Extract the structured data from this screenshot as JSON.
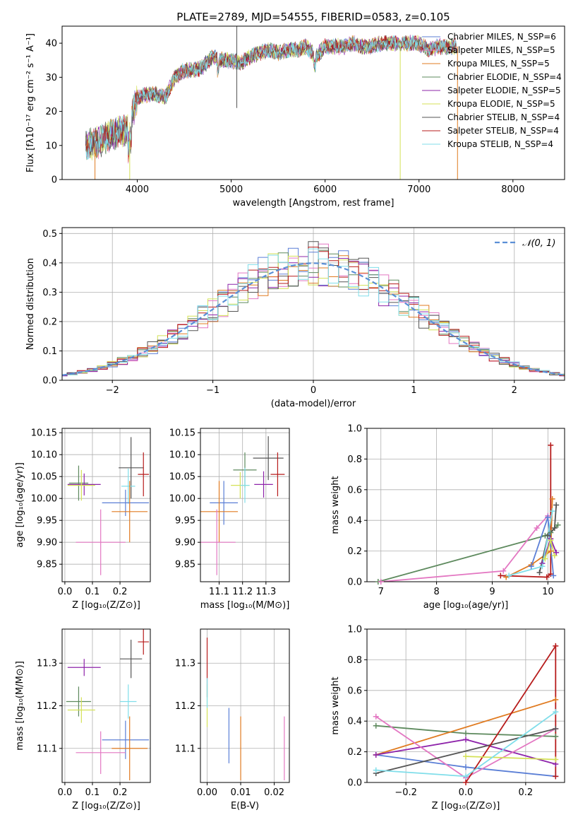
{
  "colors": {
    "chabrier_miles": "#5b7fd6",
    "salpeter_miles": "#e377c2",
    "kroupa_miles": "#e07b21",
    "chabrier_elodie": "#5e8a5e",
    "salpeter_elodie": "#8e24aa",
    "kroupa_elodie": "#d4e157",
    "chabrier_stelib": "#555555",
    "salpeter_stelib": "#b71c1c",
    "kroupa_stelib": "#80deea"
  },
  "chart_data": [
    {
      "id": "spectrum",
      "type": "line",
      "title": "PLATE=2789, MJD=54555, FIBERID=0583, z=0.105",
      "xlabel": "wavelength [Angstrom, rest frame]",
      "ylabel": "Flux [fλ10⁻¹⁷ erg cm⁻² s⁻¹ A⁻¹]",
      "xlim": [
        3200,
        8550
      ],
      "ylim": [
        0,
        45
      ],
      "xticks": [
        4000,
        5000,
        6000,
        7000,
        8000
      ],
      "yticks": [
        0,
        10,
        20,
        30,
        40
      ],
      "legend_position": "upper-right",
      "grid": false,
      "series": [
        {
          "name": "Chabrier MILES, N_SSP=6",
          "color_key": "chabrier_miles"
        },
        {
          "name": "Salpeter MILES, N_SSP=5",
          "color_key": "salpeter_miles"
        },
        {
          "name": "Kroupa MILES, N_SSP=5",
          "color_key": "kroupa_miles"
        },
        {
          "name": "Chabrier ELODIE, N_SSP=4",
          "color_key": "chabrier_elodie"
        },
        {
          "name": "Salpeter ELODIE, N_SSP=5",
          "color_key": "salpeter_elodie"
        },
        {
          "name": "Kroupa ELODIE, N_SSP=5",
          "color_key": "kroupa_elodie"
        },
        {
          "name": "Chabrier STELIB, N_SSP=4",
          "color_key": "chabrier_stelib"
        },
        {
          "name": "Salpeter STELIB, N_SSP=4",
          "color_key": "salpeter_stelib"
        },
        {
          "name": "Kroupa STELIB, N_SSP=4",
          "color_key": "kroupa_stelib"
        }
      ],
      "envelope": {
        "x": [
          3450,
          3600,
          3700,
          3800,
          3900,
          4000,
          4100,
          4200,
          4300,
          4400,
          4500,
          4600,
          4700,
          4800,
          4900,
          5000,
          5100,
          5200,
          5300,
          5400,
          5500,
          5600,
          5700,
          5800,
          5900,
          6000,
          6100,
          6200,
          6300,
          6400,
          6500,
          6600,
          6700,
          6800,
          6900,
          7000,
          7100,
          7200,
          7300,
          7400
        ],
        "y": [
          10,
          11,
          13,
          14,
          15,
          24,
          25,
          25,
          24,
          30,
          32,
          32,
          33,
          36,
          35,
          35,
          34,
          36,
          37,
          38,
          37,
          38,
          38,
          39,
          36,
          39,
          39,
          39,
          40,
          39,
          39,
          40,
          40,
          40,
          40,
          40,
          38,
          39,
          39,
          39
        ]
      },
      "spikes": [
        {
          "x": 3550,
          "y": 0,
          "color_key": "kroupa_miles"
        },
        {
          "x": 3920,
          "y": 0,
          "color_key": "kroupa_elodie"
        },
        {
          "x": 5060,
          "y": 21,
          "color_key": "chabrier_stelib"
        },
        {
          "x": 5060,
          "y": 45,
          "color_key": "chabrier_stelib"
        },
        {
          "x": 6800,
          "y": 0,
          "color_key": "kroupa_elodie"
        },
        {
          "x": 7410,
          "y": 0,
          "color_key": "kroupa_miles"
        }
      ]
    },
    {
      "id": "residual-histogram",
      "type": "line",
      "xlabel": "(data-model)/error",
      "ylabel": "Normed distribution",
      "xlim": [
        -2.5,
        2.5
      ],
      "ylim": [
        0,
        0.52
      ],
      "xticks": [
        -2,
        -1,
        0,
        1,
        2
      ],
      "yticks": [
        0.0,
        0.1,
        0.2,
        0.3,
        0.4,
        0.5
      ],
      "grid": true,
      "legend_position": "upper-right",
      "reference_curve": {
        "name": "𝒩(0, 1)",
        "mean": 0,
        "sigma": 1
      }
    },
    {
      "id": "age-vs-z",
      "type": "scatter",
      "xlabel": "Z [log₁₀(Z/Z⊙)]",
      "ylabel": "age  [log₁₀(age/yr)]",
      "xlim": [
        -0.01,
        0.31
      ],
      "ylim": [
        9.81,
        10.16
      ],
      "xticks": [
        0.0,
        0.1,
        0.2
      ],
      "yticks": [
        9.85,
        9.9,
        9.95,
        10.0,
        10.05,
        10.1,
        10.15
      ],
      "grid": true,
      "points": [
        {
          "x": 0.05,
          "y": 10.035,
          "xerr": 0.035,
          "yerr": 0.04,
          "color_key": "chabrier_elodie"
        },
        {
          "x": 0.07,
          "y": 10.032,
          "xerr": 0.06,
          "yerr": 0.025,
          "color_key": "salpeter_elodie"
        },
        {
          "x": 0.06,
          "y": 10.03,
          "xerr": 0.05,
          "yerr": 0.035,
          "color_key": "kroupa_elodie"
        },
        {
          "x": 0.24,
          "y": 10.07,
          "xerr": 0.045,
          "yerr": 0.07,
          "color_key": "chabrier_stelib"
        },
        {
          "x": 0.285,
          "y": 10.055,
          "xerr": 0.02,
          "yerr": 0.05,
          "color_key": "salpeter_stelib"
        },
        {
          "x": 0.23,
          "y": 10.028,
          "xerr": 0.025,
          "yerr": 0.04,
          "color_key": "kroupa_stelib"
        },
        {
          "x": 0.22,
          "y": 9.99,
          "xerr": 0.085,
          "yerr": 0.03,
          "color_key": "chabrier_miles"
        },
        {
          "x": 0.235,
          "y": 9.97,
          "xerr": 0.065,
          "yerr": 0.07,
          "color_key": "kroupa_miles"
        },
        {
          "x": 0.13,
          "y": 9.9,
          "xerr": 0.09,
          "yerr": 0.075,
          "color_key": "salpeter_miles"
        }
      ]
    },
    {
      "id": "age-vs-mass",
      "type": "scatter",
      "xlabel": "mass [log₁₀(M/M⊙)]",
      "ylabel": "",
      "xlim": [
        11.02,
        11.4
      ],
      "ylim": [
        9.81,
        10.16
      ],
      "xticks": [
        11.1,
        11.2,
        11.3
      ],
      "yticks": [
        9.85,
        9.9,
        9.95,
        10.0,
        10.05,
        10.1,
        10.15
      ],
      "grid": true,
      "points": [
        {
          "x": 11.21,
          "y": 10.065,
          "xerr": 0.05,
          "yerr": 0.04,
          "color_key": "chabrier_elodie"
        },
        {
          "x": 11.29,
          "y": 10.032,
          "xerr": 0.04,
          "yerr": 0.03,
          "color_key": "salpeter_elodie"
        },
        {
          "x": 11.19,
          "y": 10.03,
          "xerr": 0.04,
          "yerr": 0.03,
          "color_key": "kroupa_elodie"
        },
        {
          "x": 11.31,
          "y": 10.092,
          "xerr": 0.065,
          "yerr": 0.05,
          "color_key": "chabrier_stelib"
        },
        {
          "x": 11.35,
          "y": 10.055,
          "xerr": 0.03,
          "yerr": 0.05,
          "color_key": "salpeter_stelib"
        },
        {
          "x": 11.21,
          "y": 10.03,
          "xerr": 0.02,
          "yerr": 0.04,
          "color_key": "kroupa_stelib"
        },
        {
          "x": 11.12,
          "y": 9.99,
          "xerr": 0.06,
          "yerr": 0.05,
          "color_key": "chabrier_miles"
        },
        {
          "x": 11.1,
          "y": 9.97,
          "xerr": 0.08,
          "yerr": 0.07,
          "color_key": "kroupa_miles"
        },
        {
          "x": 11.09,
          "y": 9.9,
          "xerr": 0.08,
          "yerr": 0.075,
          "color_key": "salpeter_miles"
        }
      ]
    },
    {
      "id": "mass-weight-vs-age",
      "type": "line",
      "xlabel": "age  [log₁₀(age/yr)]",
      "ylabel": "mass weight",
      "xlim": [
        6.75,
        10.3
      ],
      "ylim": [
        0,
        1
      ],
      "xticks": [
        7,
        8,
        9,
        10
      ],
      "yticks": [
        0.0,
        0.2,
        0.4,
        0.6,
        0.8,
        1.0
      ],
      "grid": true,
      "series": [
        {
          "color_key": "chabrier_elodie",
          "x": [
            6.95,
            9.95,
            10.05,
            10.18
          ],
          "y": [
            0.0,
            0.3,
            0.32,
            0.37
          ]
        },
        {
          "color_key": "salpeter_miles",
          "x": [
            7.0,
            9.2,
            9.8,
            10.0
          ],
          "y": [
            0.0,
            0.07,
            0.35,
            0.43
          ]
        },
        {
          "color_key": "salpeter_stelib",
          "x": [
            9.15,
            9.98,
            10.05,
            10.05
          ],
          "y": [
            0.04,
            0.03,
            0.05,
            0.89
          ]
        },
        {
          "color_key": "kroupa_miles",
          "x": [
            9.25,
            9.7,
            10.05,
            10.08
          ],
          "y": [
            0.03,
            0.11,
            0.2,
            0.54
          ]
        },
        {
          "color_key": "chabrier_stelib",
          "x": [
            9.85,
            10.0,
            10.12,
            10.15
          ],
          "y": [
            0.06,
            0.3,
            0.35,
            0.5
          ]
        },
        {
          "color_key": "chabrier_miles",
          "x": [
            9.7,
            10.0,
            10.1
          ],
          "y": [
            0.1,
            0.42,
            0.04
          ]
        },
        {
          "color_key": "salpeter_elodie",
          "x": [
            9.9,
            10.05,
            10.15
          ],
          "y": [
            0.12,
            0.28,
            0.19
          ]
        },
        {
          "color_key": "kroupa_elodie",
          "x": [
            9.95,
            10.05,
            10.12
          ],
          "y": [
            0.15,
            0.27,
            0.17
          ]
        },
        {
          "color_key": "kroupa_stelib",
          "x": [
            9.3,
            9.9,
            10.08
          ],
          "y": [
            0.04,
            0.1,
            0.46
          ]
        }
      ]
    },
    {
      "id": "mass-vs-z",
      "type": "scatter",
      "xlabel": "Z [log₁₀(Z/Z⊙)]",
      "ylabel": "mass [log₁₀(M/M⊙)]",
      "xlim": [
        -0.01,
        0.31
      ],
      "ylim": [
        11.02,
        11.38
      ],
      "xticks": [
        0.0,
        0.1,
        0.2
      ],
      "yticks": [
        11.1,
        11.2,
        11.3
      ],
      "grid": true,
      "points": [
        {
          "x": 0.07,
          "y": 11.29,
          "xerr": 0.06,
          "yerr": 0.02,
          "color_key": "salpeter_elodie"
        },
        {
          "x": 0.05,
          "y": 11.21,
          "xerr": 0.045,
          "yerr": 0.035,
          "color_key": "chabrier_elodie"
        },
        {
          "x": 0.06,
          "y": 11.19,
          "xerr": 0.05,
          "yerr": 0.03,
          "color_key": "kroupa_elodie"
        },
        {
          "x": 0.24,
          "y": 11.31,
          "xerr": 0.04,
          "yerr": 0.045,
          "color_key": "chabrier_stelib"
        },
        {
          "x": 0.285,
          "y": 11.35,
          "xerr": 0.02,
          "yerr": 0.03,
          "color_key": "salpeter_stelib"
        },
        {
          "x": 0.23,
          "y": 11.21,
          "xerr": 0.03,
          "yerr": 0.04,
          "color_key": "kroupa_stelib"
        },
        {
          "x": 0.22,
          "y": 11.12,
          "xerr": 0.085,
          "yerr": 0.045,
          "color_key": "chabrier_miles"
        },
        {
          "x": 0.235,
          "y": 11.1,
          "xerr": 0.065,
          "yerr": 0.075,
          "color_key": "kroupa_miles"
        },
        {
          "x": 0.13,
          "y": 11.09,
          "xerr": 0.09,
          "yerr": 0.05,
          "color_key": "salpeter_miles"
        }
      ]
    },
    {
      "id": "mass-vs-ebv",
      "type": "scatter",
      "xlabel": "E(B-V)",
      "ylabel": "",
      "xlim": [
        -0.002,
        0.0245
      ],
      "ylim": [
        11.02,
        11.38
      ],
      "xticks": [
        0.0,
        0.01,
        0.02
      ],
      "yticks": [
        11.1,
        11.2,
        11.3
      ],
      "grid": true,
      "points": [
        {
          "x": 0.0,
          "y": 11.29,
          "yerr": 0.07,
          "color_key": "salpeter_stelib"
        },
        {
          "x": 0.0,
          "y": 11.2,
          "yerr": 0.05,
          "color_key": "kroupa_elodie"
        },
        {
          "x": 0.0,
          "y": 11.23,
          "yerr": 0.035,
          "color_key": "kroupa_stelib"
        },
        {
          "x": 0.0065,
          "y": 11.13,
          "yerr": 0.065,
          "color_key": "chabrier_miles"
        },
        {
          "x": 0.01,
          "y": 11.1,
          "yerr": 0.075,
          "color_key": "kroupa_miles"
        },
        {
          "x": 0.023,
          "y": 11.1,
          "yerr": 0.075,
          "color_key": "salpeter_miles"
        }
      ]
    },
    {
      "id": "mass-weight-vs-z",
      "type": "line",
      "xlabel": "Z [log₁₀(Z/Z⊙)]",
      "ylabel": "mass weight",
      "xlim": [
        -0.33,
        0.33
      ],
      "ylim": [
        0,
        1
      ],
      "xticks": [
        -0.2,
        0.0,
        0.2
      ],
      "yticks": [
        0.0,
        0.2,
        0.4,
        0.6,
        0.8,
        1.0
      ],
      "grid": true,
      "series": [
        {
          "color_key": "chabrier_elodie",
          "x": [
            -0.3,
            0.0,
            0.3
          ],
          "y": [
            0.37,
            0.32,
            0.3
          ]
        },
        {
          "color_key": "chabrier_miles",
          "x": [
            -0.3,
            0.0,
            0.3
          ],
          "y": [
            0.18,
            0.1,
            0.04
          ]
        },
        {
          "color_key": "kroupa_miles",
          "x": [
            -0.3,
            0.3
          ],
          "y": [
            0.18,
            0.54
          ]
        },
        {
          "color_key": "salpeter_elodie",
          "x": [
            -0.3,
            0.0,
            0.3
          ],
          "y": [
            0.18,
            0.28,
            0.12
          ]
        },
        {
          "color_key": "salpeter_miles",
          "x": [
            -0.3,
            0.0,
            0.3
          ],
          "y": [
            0.43,
            0.03,
            0.35
          ]
        },
        {
          "color_key": "chabrier_stelib",
          "x": [
            -0.3,
            0.3
          ],
          "y": [
            0.06,
            0.35
          ]
        },
        {
          "color_key": "salpeter_stelib",
          "x": [
            0.0,
            0.3,
            0.3
          ],
          "y": [
            0.0,
            0.89,
            0.04
          ]
        },
        {
          "color_key": "kroupa_elodie",
          "x": [
            0.0,
            0.3
          ],
          "y": [
            0.17,
            0.15
          ]
        },
        {
          "color_key": "kroupa_stelib",
          "x": [
            -0.3,
            0.0,
            0.3
          ],
          "y": [
            0.08,
            0.04,
            0.46
          ]
        }
      ]
    }
  ]
}
